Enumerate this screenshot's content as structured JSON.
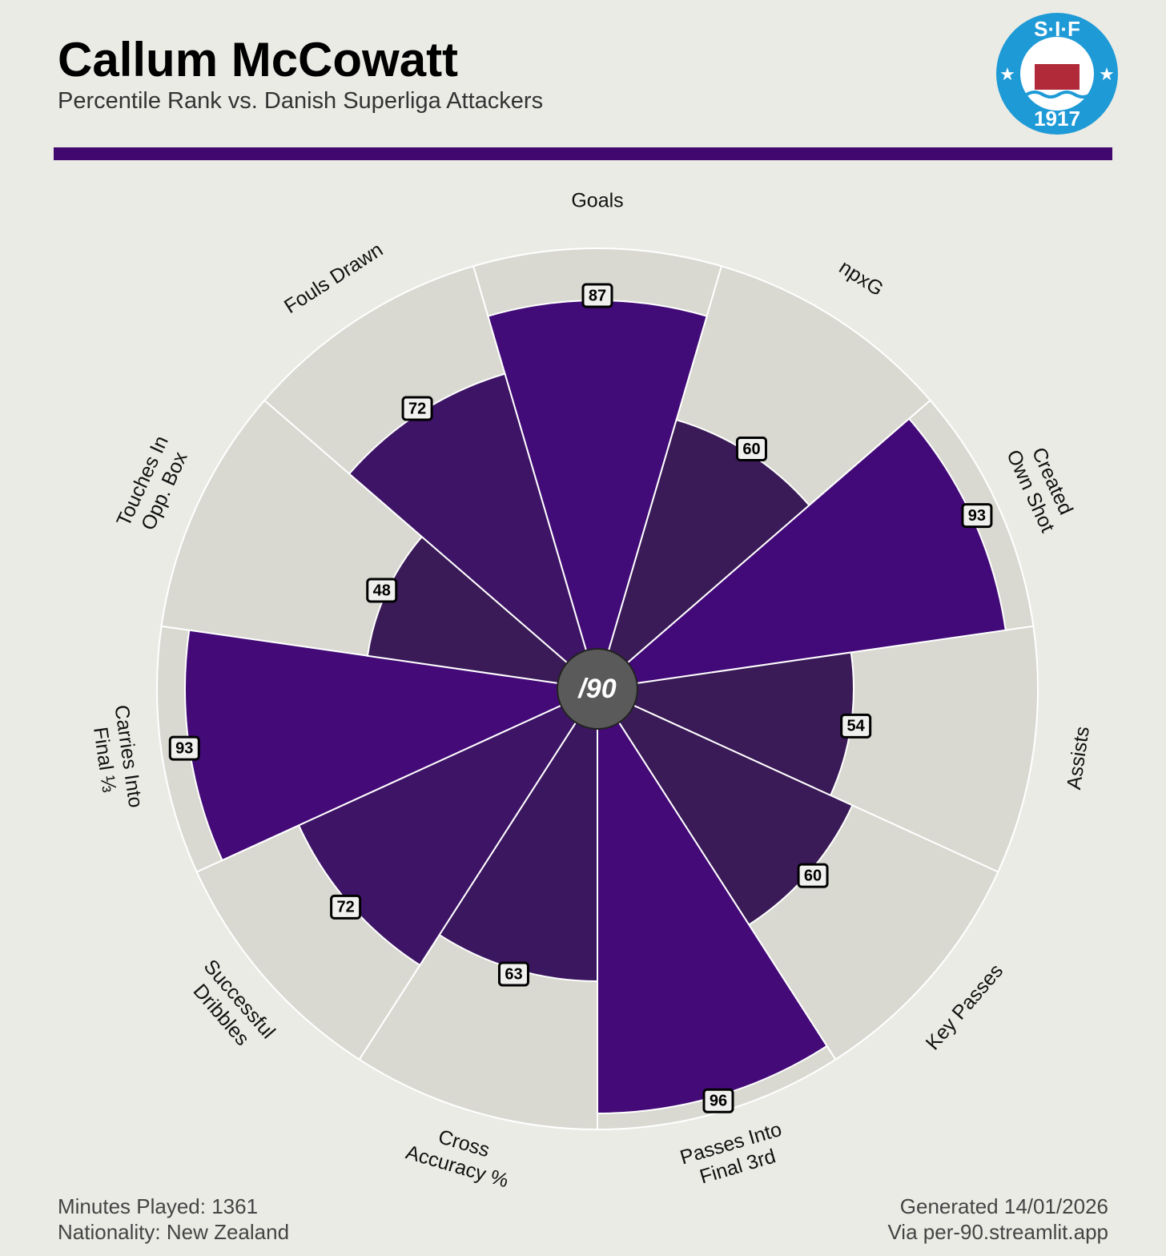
{
  "chart_data": {
    "type": "pizza",
    "title": "Callum McCowatt",
    "subtitle": "Percentile Rank vs. Danish Superliga Attackers",
    "categories": [
      [
        "Goals"
      ],
      [
        "npxG"
      ],
      [
        "Created",
        "Own Shot"
      ],
      [
        "Assists"
      ],
      [
        "Key Passes"
      ],
      [
        "Passes Into",
        "Final 3rd"
      ],
      [
        "Cross",
        "Accuracy %"
      ],
      [
        "Successful",
        "Dribbles"
      ],
      [
        "Carries Into",
        "Final ⅓"
      ],
      [
        "Touches In",
        "Opp. Box"
      ],
      [
        "Fouls Drawn"
      ]
    ],
    "values": [
      87,
      60,
      93,
      54,
      60,
      96,
      63,
      72,
      93,
      48,
      72
    ],
    "colors": [
      "#420c78",
      "#3a1b57",
      "#420a78",
      "#3a1b57",
      "#3a1b57",
      "#430a78",
      "#3b1760",
      "#3e1467",
      "#430a78",
      "#3a1b57",
      "#3e1467"
    ],
    "slice_background": "#d9d9d2",
    "ylim": [
      0,
      100
    ],
    "footer_left": [
      "Minutes Played: 1361",
      "Nationality: New Zealand"
    ],
    "footer_right": [
      "Generated 14/01/2026",
      "Via per-90.streamlit.app"
    ],
    "logo": {
      "top": "S·I·F",
      "bottom": "1917"
    },
    "center_label": "/90"
  }
}
